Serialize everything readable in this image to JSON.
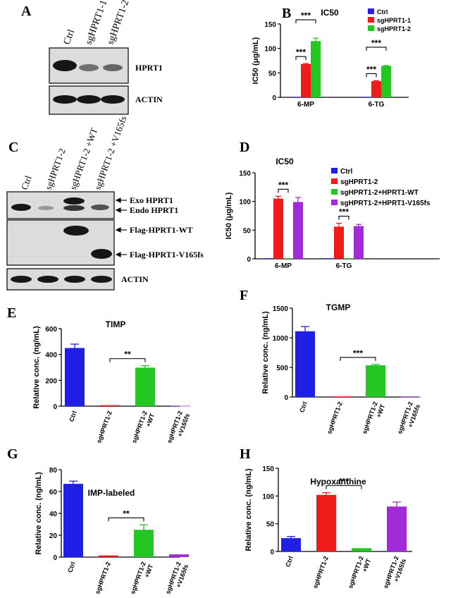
{
  "colors": {
    "blue": "#1f1fe6",
    "red": "#ee1b1b",
    "green": "#22c722",
    "purple": "#a12bd6",
    "blot_bg": "#dcdcdc",
    "band": "#161616"
  },
  "panel_A": {
    "label": "A",
    "lanes": [
      "Ctrl",
      "sgHPRT1-1",
      "sgHPRT1-2"
    ],
    "rows": [
      {
        "label": "HPRT1",
        "intensities": [
          1.0,
          0.35,
          0.45
        ]
      },
      {
        "label": "ACTIN",
        "intensities": [
          0.9,
          0.9,
          0.9
        ]
      }
    ]
  },
  "panel_C": {
    "label": "C",
    "lanes": [
      "Ctrl",
      "sgHPRT1-2",
      "sgHPRT1-2 +WT",
      "sgHPRT1-2 +V165fs"
    ],
    "arrow_labels": [
      "Exo HPRT1",
      "Endo HPRT1",
      "Flag-HPRT1-WT",
      "Flag-HPRT1-V165fs"
    ],
    "actin_label": "ACTIN"
  },
  "chart_data": [
    {
      "id": "B",
      "panel_label": "B",
      "type": "bar",
      "title": "IC50",
      "ylabel": "IC50 (μg/mL)",
      "xlabel": "",
      "categories": [
        "6-MP",
        "6-TG"
      ],
      "ylim": [
        0,
        150
      ],
      "yticks": [
        0,
        50,
        100,
        150
      ],
      "series": [
        {
          "name": "Ctrl",
          "color": "#1f1fe6",
          "values": [
            1,
            1
          ],
          "errors": [
            0,
            0
          ]
        },
        {
          "name": "sgHPRT1-1",
          "color": "#ee1b1b",
          "values": [
            68,
            33
          ],
          "errors": [
            1,
            1
          ]
        },
        {
          "name": "sgHPRT1-2",
          "color": "#22c722",
          "values": [
            115,
            64
          ],
          "errors": [
            6,
            1
          ]
        }
      ],
      "significance": [
        {
          "category": 0,
          "from": 0,
          "to": 1,
          "label": "***"
        },
        {
          "category": 0,
          "from": 0,
          "to": 2,
          "label": "***"
        },
        {
          "category": 1,
          "from": 0,
          "to": 1,
          "label": "***"
        },
        {
          "category": 1,
          "from": 0,
          "to": 2,
          "label": "***"
        }
      ],
      "legend": "top-right",
      "grid": false
    },
    {
      "id": "D",
      "panel_label": "D",
      "type": "bar",
      "title": "IC50",
      "ylabel": "IC50 (μg/mL)",
      "xlabel": "",
      "categories": [
        "6-MP",
        "6-TG"
      ],
      "ylim": [
        0,
        150
      ],
      "yticks": [
        0,
        50,
        100,
        150
      ],
      "series": [
        {
          "name": "Ctrl",
          "color": "#1f1fe6",
          "values": [
            1,
            1
          ],
          "errors": [
            0,
            0
          ]
        },
        {
          "name": "sgHPRT1-2",
          "color": "#ee1b1b",
          "values": [
            105,
            56
          ],
          "errors": [
            4,
            6
          ]
        },
        {
          "name": "sgHPRT1-2+HPRT1-WT",
          "color": "#22c722",
          "values": [
            1,
            1
          ],
          "errors": [
            0,
            0
          ]
        },
        {
          "name": "sgHPRT1-2+HPRT1-V165fs",
          "color": "#a12bd6",
          "values": [
            99,
            57
          ],
          "errors": [
            8,
            3
          ]
        }
      ],
      "significance": [
        {
          "category": 0,
          "from": 1,
          "to": 2,
          "label": "***"
        },
        {
          "category": 1,
          "from": 1,
          "to": 2,
          "label": "***"
        }
      ],
      "legend": "top-right",
      "grid": false
    },
    {
      "id": "E",
      "panel_label": "E",
      "type": "bar",
      "title": "TIMP",
      "ylabel": "Relative conc. (ng/mL)",
      "xlabel": "",
      "categories": [
        "Ctrl",
        "sgHPRT1-2",
        "sgHPRT1-2 +WT",
        "sgHPRT1-2 +V165fs"
      ],
      "ylim": [
        0,
        600
      ],
      "yticks": [
        0,
        200,
        400,
        600
      ],
      "values": [
        450,
        8,
        298,
        3
      ],
      "errors": [
        30,
        0,
        15,
        0
      ],
      "colors": [
        "#1f1fe6",
        "#ee1b1b",
        "#22c722",
        "#a12bd6"
      ],
      "significance": [
        {
          "from": 1,
          "to": 2,
          "label": "**"
        }
      ],
      "grid": false
    },
    {
      "id": "F",
      "panel_label": "F",
      "type": "bar",
      "title": "TGMP",
      "ylabel": "Relative conc. (ng/mL)",
      "xlabel": "",
      "categories": [
        "Ctrl",
        "sgHPRT1-2",
        "sgHPRT1-2 +WT",
        "sgHPRT1-2 +V165fs"
      ],
      "ylim": [
        0,
        1500
      ],
      "yticks": [
        0,
        500,
        1000,
        1500
      ],
      "values": [
        1110,
        10,
        535,
        3
      ],
      "errors": [
        80,
        0,
        15,
        0
      ],
      "colors": [
        "#1f1fe6",
        "#ee1b1b",
        "#22c722",
        "#a12bd6"
      ],
      "significance": [
        {
          "from": 1,
          "to": 2,
          "label": "***"
        }
      ],
      "grid": false
    },
    {
      "id": "G",
      "panel_label": "G",
      "type": "bar",
      "title": "IMP-labeled",
      "ylabel": "Relative conc. (ng/mL)",
      "xlabel": "",
      "categories": [
        "Ctrl",
        "sgHPRT1-2",
        "sgHPRT1-2 +WT",
        "sgHPRT1-2 +V165fs"
      ],
      "ylim": [
        0,
        80
      ],
      "yticks": [
        0,
        20,
        40,
        60,
        80
      ],
      "values": [
        67,
        1.5,
        25,
        2.5
      ],
      "errors": [
        2.5,
        0,
        4.5,
        0
      ],
      "colors": [
        "#1f1fe6",
        "#ee1b1b",
        "#22c722",
        "#a12bd6"
      ],
      "significance": [
        {
          "from": 1,
          "to": 2,
          "label": "**"
        }
      ],
      "grid": false
    },
    {
      "id": "H",
      "panel_label": "H",
      "type": "bar",
      "title": "Hypoxanthine",
      "ylabel": "Relative conc. (ng/mL)",
      "xlabel": "",
      "categories": [
        "Ctrl",
        "sgHPRT1-2",
        "sgHPRT1-2 +WT",
        "sgHPRT1-2 +V165fs"
      ],
      "ylim": [
        0,
        150
      ],
      "yticks": [
        0,
        50,
        100,
        150
      ],
      "values": [
        24,
        102,
        6,
        81
      ],
      "errors": [
        3,
        4,
        0,
        8
      ],
      "colors": [
        "#1f1fe6",
        "#ee1b1b",
        "#22c722",
        "#a12bd6"
      ],
      "significance": [
        {
          "from": 1,
          "to": 2,
          "label": "***"
        }
      ],
      "grid": false
    }
  ]
}
